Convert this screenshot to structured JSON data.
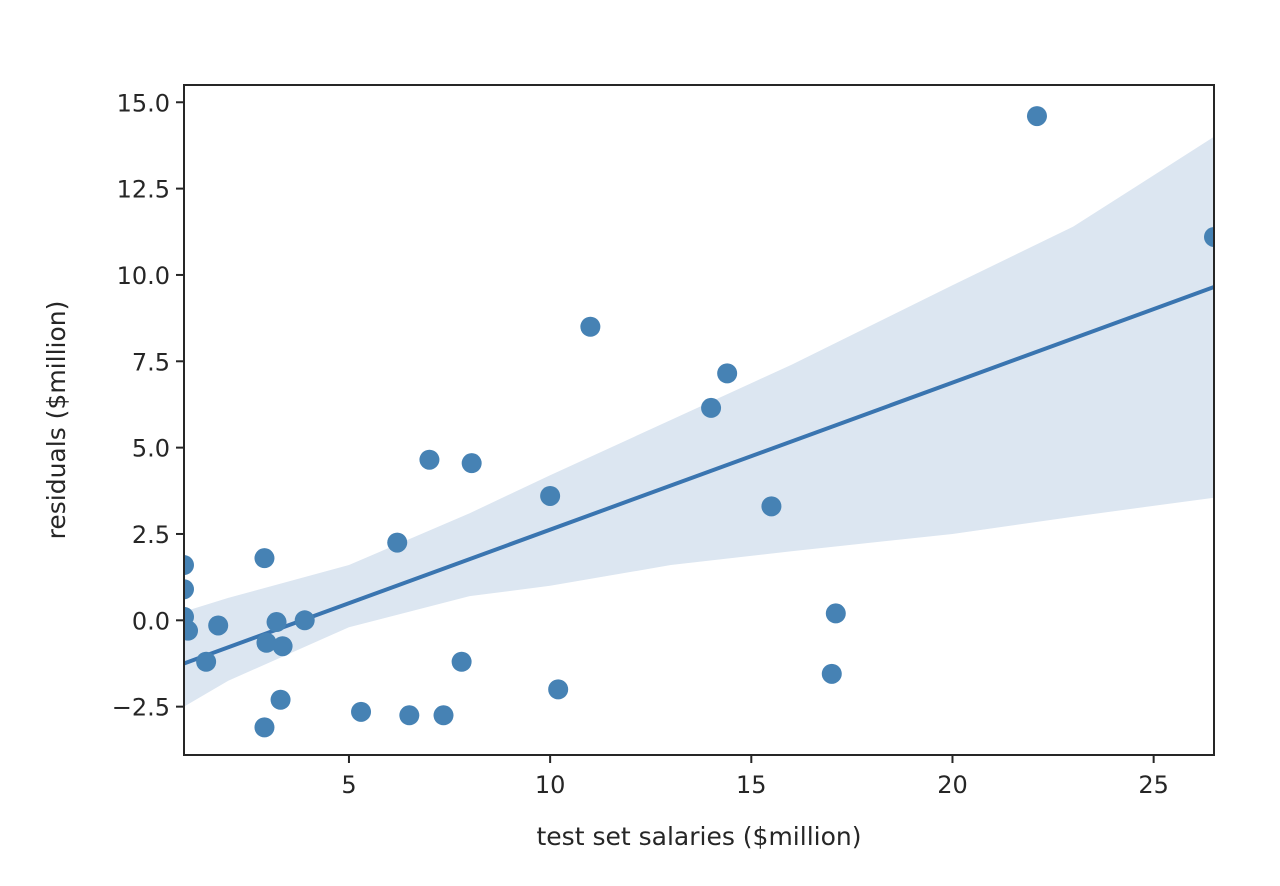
{
  "chart_data": {
    "type": "scatter",
    "title": "",
    "xlabel": "test set salaries ($million)",
    "ylabel": "residuals ($million)",
    "xlim": [
      0.9,
      26.5
    ],
    "ylim": [
      -3.9,
      15.5
    ],
    "xticks": [
      5,
      10,
      15,
      20,
      25
    ],
    "xtick_labels": [
      "5",
      "10",
      "15",
      "20",
      "25"
    ],
    "yticks": [
      -2.5,
      0.0,
      2.5,
      5.0,
      7.5,
      10.0,
      12.5,
      15.0
    ],
    "ytick_labels": [
      "−2.5",
      "0.0",
      "2.5",
      "5.0",
      "7.5",
      "10.0",
      "12.5",
      "15.0"
    ],
    "grid": false,
    "colors": {
      "points": "#4682b4",
      "line": "#3a75b0",
      "band": "#dce6f1",
      "axes": "#262626"
    },
    "series": [
      {
        "points": [
          {
            "x": 0.9,
            "y": 1.6
          },
          {
            "x": 0.9,
            "y": 0.9
          },
          {
            "x": 0.9,
            "y": 0.1
          },
          {
            "x": 1.0,
            "y": -0.3
          },
          {
            "x": 1.75,
            "y": -0.15
          },
          {
            "x": 1.45,
            "y": -1.2
          },
          {
            "x": 2.9,
            "y": 1.8
          },
          {
            "x": 2.95,
            "y": -0.65
          },
          {
            "x": 3.2,
            "y": -0.05
          },
          {
            "x": 3.35,
            "y": -0.75
          },
          {
            "x": 3.3,
            "y": -2.3
          },
          {
            "x": 2.9,
            "y": -3.1
          },
          {
            "x": 3.9,
            "y": 0.0
          },
          {
            "x": 5.3,
            "y": -2.65
          },
          {
            "x": 6.2,
            "y": 2.25
          },
          {
            "x": 6.5,
            "y": -2.75
          },
          {
            "x": 7.0,
            "y": 4.65
          },
          {
            "x": 7.35,
            "y": -2.75
          },
          {
            "x": 7.8,
            "y": -1.2
          },
          {
            "x": 8.05,
            "y": 4.55
          },
          {
            "x": 10.0,
            "y": 3.6
          },
          {
            "x": 10.2,
            "y": -2.0
          },
          {
            "x": 11.0,
            "y": 8.5
          },
          {
            "x": 14.0,
            "y": 6.15
          },
          {
            "x": 14.4,
            "y": 7.15
          },
          {
            "x": 15.5,
            "y": 3.3
          },
          {
            "x": 17.1,
            "y": 0.2
          },
          {
            "x": 17.0,
            "y": -1.55
          },
          {
            "x": 22.1,
            "y": 14.6
          },
          {
            "x": 26.5,
            "y": 11.1
          }
        ]
      }
    ],
    "regression": {
      "x": [
        0.9,
        26.5
      ],
      "y": [
        -1.25,
        9.65
      ]
    },
    "confidence_band": {
      "x": [
        0.9,
        2.0,
        5.0,
        8.0,
        10.0,
        13.0,
        16.0,
        20.0,
        23.0,
        26.5
      ],
      "upper": [
        0.25,
        0.65,
        1.6,
        3.1,
        4.2,
        5.8,
        7.4,
        9.7,
        11.4,
        14.0
      ],
      "lower": [
        -2.5,
        -1.75,
        -0.2,
        0.7,
        1.0,
        1.6,
        2.0,
        2.5,
        3.0,
        3.55
      ]
    }
  }
}
